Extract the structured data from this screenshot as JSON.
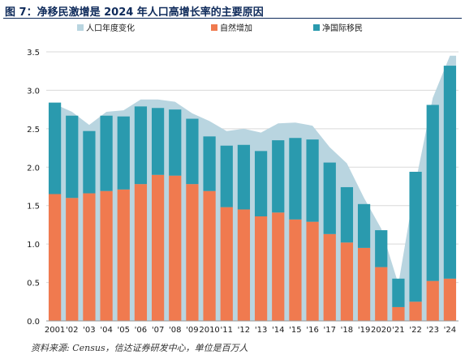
{
  "title": "图 7：净移民激增是 2024 年人口高增长率的主要原因",
  "source": "资料来源: Census，信达证券研发中心，单位是百万人",
  "chart_data": {
    "type": "bar",
    "legend_position": "top",
    "categories": [
      "2001",
      "'02",
      "'03",
      "'04",
      "'05",
      "'06",
      "'07",
      "'08",
      "'09",
      "2010",
      "'11",
      "'12",
      "'13",
      "'14",
      "'15",
      "'16",
      "'17",
      "'18",
      "'19",
      "2020",
      "'21",
      "'22",
      "'23",
      "'24"
    ],
    "series": [
      {
        "name": "人口年度变化",
        "type": "area",
        "color": "#b9d5e0",
        "values": [
          2.82,
          2.72,
          2.55,
          2.72,
          2.74,
          2.88,
          2.88,
          2.85,
          2.7,
          2.6,
          2.47,
          2.5,
          2.45,
          2.57,
          2.58,
          2.54,
          2.26,
          2.05,
          1.6,
          1.2,
          0.48,
          1.8,
          2.9,
          3.45
        ]
      },
      {
        "name": "自然增加",
        "type": "bar-stack",
        "color": "#f07a4f",
        "values": [
          1.65,
          1.6,
          1.66,
          1.69,
          1.71,
          1.78,
          1.9,
          1.89,
          1.78,
          1.69,
          1.48,
          1.45,
          1.36,
          1.41,
          1.32,
          1.29,
          1.13,
          1.02,
          0.95,
          0.7,
          0.18,
          0.25,
          0.52,
          0.55
        ]
      },
      {
        "name": "净国际移民",
        "type": "bar-stack",
        "color": "#2a9aae",
        "values": [
          1.19,
          1.07,
          0.81,
          0.98,
          0.95,
          1.01,
          0.87,
          0.86,
          0.85,
          0.71,
          0.8,
          0.84,
          0.85,
          0.94,
          1.06,
          1.07,
          0.93,
          0.72,
          0.57,
          0.48,
          0.37,
          1.69,
          2.29,
          2.77
        ]
      }
    ],
    "ylim": [
      0,
      3.5
    ],
    "yticks": [
      "0.0",
      "0.5",
      "1.0",
      "1.5",
      "2.0",
      "2.5",
      "3.0",
      "3.5"
    ],
    "grid": true
  }
}
